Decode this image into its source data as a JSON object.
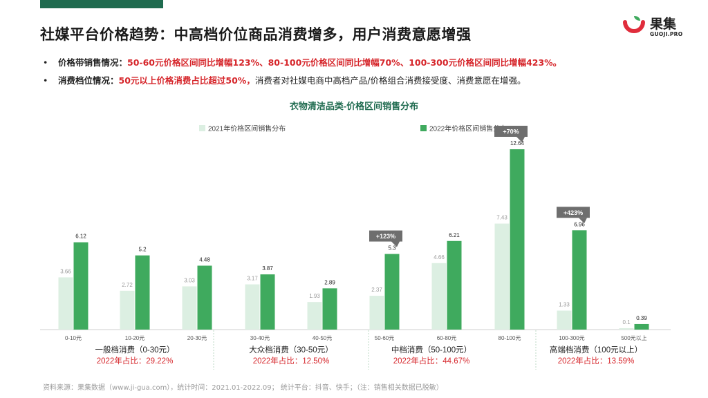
{
  "title": "社媒平台价格趋势：中高档价位商品消费增多，用户消费意愿增强",
  "logo": {
    "cn": "果集",
    "en": "GUOJI.PRO"
  },
  "bullets": [
    {
      "label": "价格带销售情况：",
      "highlight": "50-60元价格区间同比增幅123%、80-100元价格区间同比增幅70%、100-300元价格区间同比增幅423%。",
      "rest": ""
    },
    {
      "label": "消费档位情况：",
      "highlight": "50元以上价格消费占比超过50%，",
      "rest": "消费者对社媒电商中高档产品/价格组合消费接受度、消费意愿在增强。"
    }
  ],
  "chart_data": {
    "type": "bar",
    "title": "衣物清洁品类-价格区间销售分布",
    "categories": [
      "0-10元",
      "10-20元",
      "20-30元",
      "30-40元",
      "40-50元",
      "50-60元",
      "60-80元",
      "80-100元",
      "100-300元",
      "500元以上"
    ],
    "series": [
      {
        "name": "2021年价格区间销售分布",
        "values": [
          3.66,
          2.72,
          3.03,
          3.17,
          1.93,
          2.37,
          4.66,
          7.43,
          1.33,
          0.1
        ],
        "color": "#dcefe2"
      },
      {
        "name": "2022年价格区间销售分布",
        "values": [
          6.12,
          5.2,
          4.48,
          3.87,
          2.89,
          5.3,
          6.21,
          12.64,
          6.96,
          0.39
        ],
        "color": "#3faa5e"
      }
    ],
    "ylim": [
      0,
      13
    ],
    "legend": "top",
    "callouts": [
      {
        "category_index": 5,
        "text": "+123%"
      },
      {
        "category_index": 7,
        "text": "+70%"
      },
      {
        "category_index": 8,
        "text": "+423%"
      }
    ],
    "groups": [
      {
        "name": "一般档消费（0-30元）",
        "share": "2022年占比：29.22%",
        "range": [
          0,
          2
        ]
      },
      {
        "name": "大众档消费（30-50元）",
        "share": "2022年占比：12.50%",
        "range": [
          3,
          4
        ]
      },
      {
        "name": "中档消费（50-100元）",
        "share": "2022年占比：44.67%",
        "range": [
          5,
          7
        ]
      },
      {
        "name": "高端档消费（100元以上）",
        "share": "2022年占比：13.59%",
        "range": [
          8,
          9
        ]
      }
    ]
  },
  "footer": "资料来源：果集数据（www.ji-gua.com），统计时间：2021.01-2022.09；    统计平台：抖音、快手；（注：销售相关数据已脱敏）",
  "colors": {
    "accent": "#1f6b4f",
    "highlight": "#d6262b",
    "bar2021": "#dcefe2",
    "bar2022": "#3faa5e",
    "callout": "#6e6e6e"
  }
}
